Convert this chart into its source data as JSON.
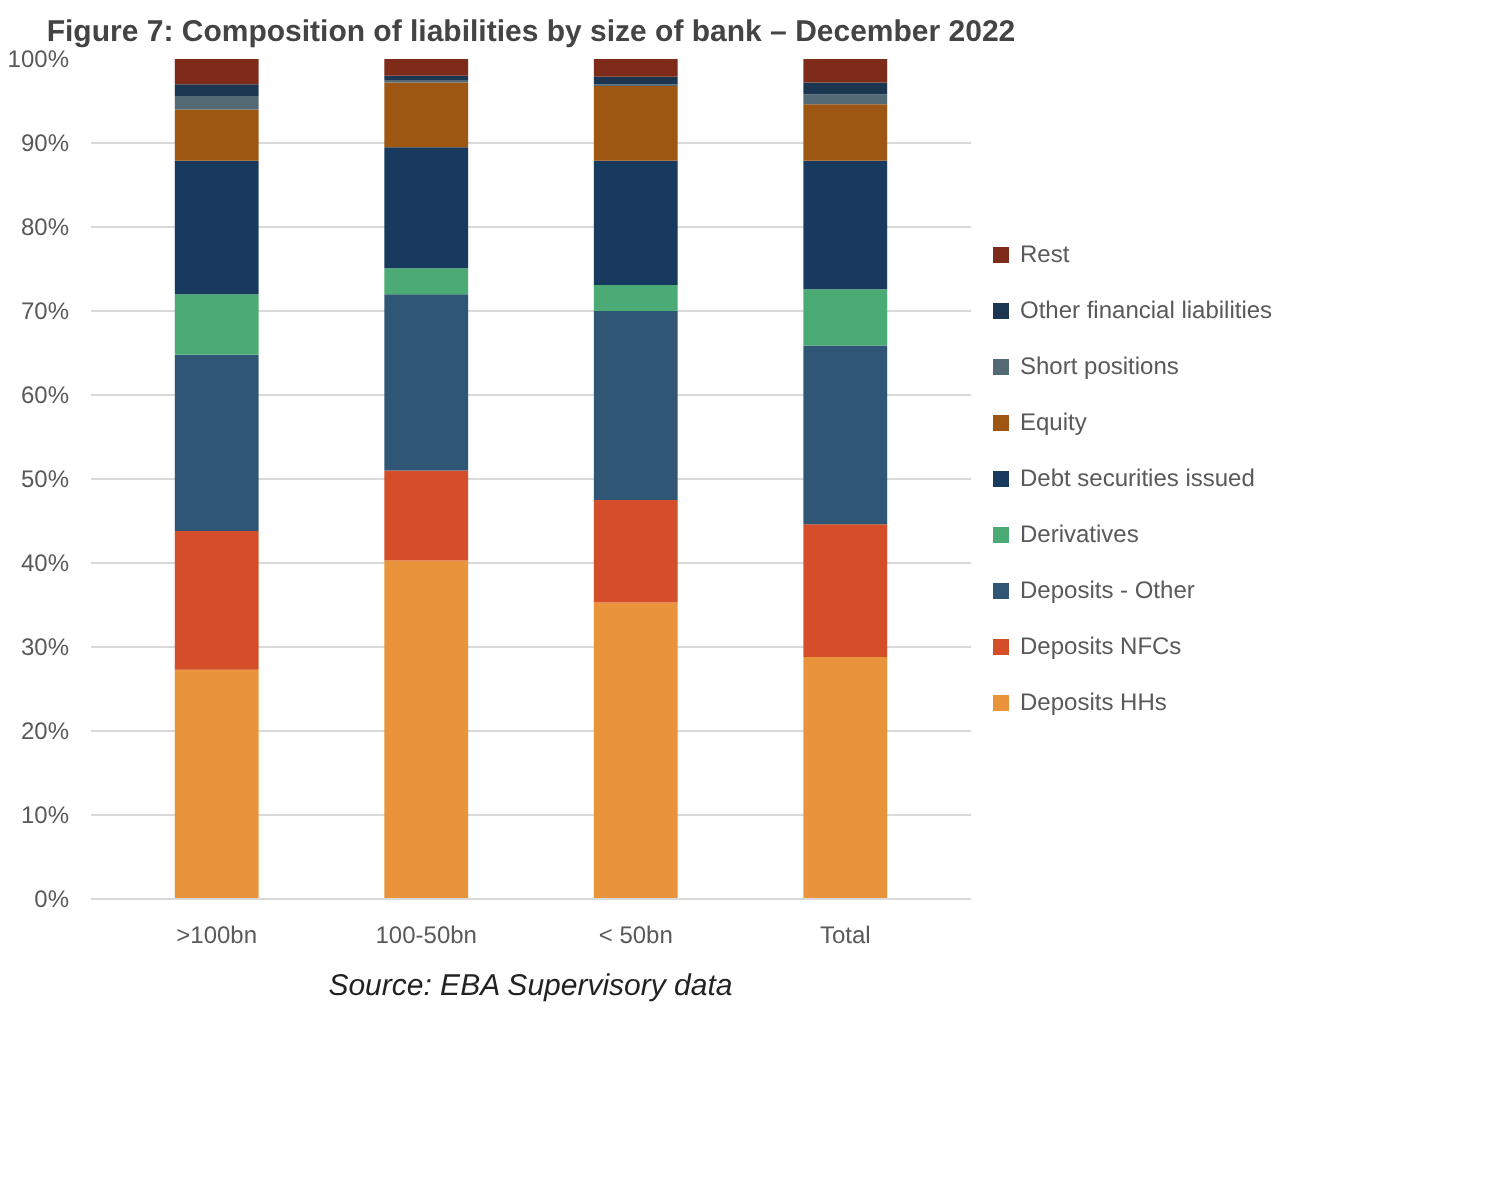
{
  "chart_data": {
    "type": "bar",
    "stacked": true,
    "title": "Figure 7: Composition of liabilities by size of bank – December 2022",
    "categories": [
      ">100bn",
      "100-50bn",
      "< 50bn",
      "Total"
    ],
    "series": [
      {
        "name": "Deposits HHs",
        "color": "#e9943a",
        "values": [
          27.3,
          40.3,
          35.3,
          28.8
        ]
      },
      {
        "name": "Deposits NFCs",
        "color": "#d44e2a",
        "values": [
          16.5,
          10.7,
          12.2,
          15.8
        ]
      },
      {
        "name": "Deposits - Other",
        "color": "#2f5775",
        "values": [
          21.0,
          21.0,
          22.5,
          21.3
        ]
      },
      {
        "name": "Derivatives",
        "color": "#4aab74",
        "values": [
          7.2,
          3.1,
          3.1,
          6.7
        ]
      },
      {
        "name": "Debt securities issued",
        "color": "#173a5e",
        "values": [
          15.9,
          14.4,
          14.8,
          15.3
        ]
      },
      {
        "name": "Equity",
        "color": "#9e5712",
        "values": [
          6.1,
          7.7,
          8.9,
          6.7
        ]
      },
      {
        "name": "Short positions",
        "color": "#536a74",
        "values": [
          1.6,
          0.3,
          0.2,
          1.2
        ]
      },
      {
        "name": "Other financial liabilities",
        "color": "#1c3550",
        "values": [
          1.4,
          0.5,
          0.9,
          1.4
        ]
      },
      {
        "name": "Rest",
        "color": "#7f2b1a",
        "values": [
          3.0,
          2.0,
          2.1,
          2.8
        ]
      }
    ],
    "ylim": [
      0,
      100
    ],
    "yticks": [
      {
        "value": 0,
        "label": "0%"
      },
      {
        "value": 10,
        "label": "10%"
      },
      {
        "value": 20,
        "label": "20%"
      },
      {
        "value": 30,
        "label": "30%"
      },
      {
        "value": 40,
        "label": "40%"
      },
      {
        "value": 50,
        "label": "50%"
      },
      {
        "value": 60,
        "label": "60%"
      },
      {
        "value": 70,
        "label": "70%"
      },
      {
        "value": 80,
        "label": "80%"
      },
      {
        "value": 90,
        "label": "90%"
      },
      {
        "value": 100,
        "label": "100%"
      }
    ],
    "grid": "y",
    "legend": "right",
    "annotations": [
      "Source: EBA Supervisory data"
    ]
  }
}
